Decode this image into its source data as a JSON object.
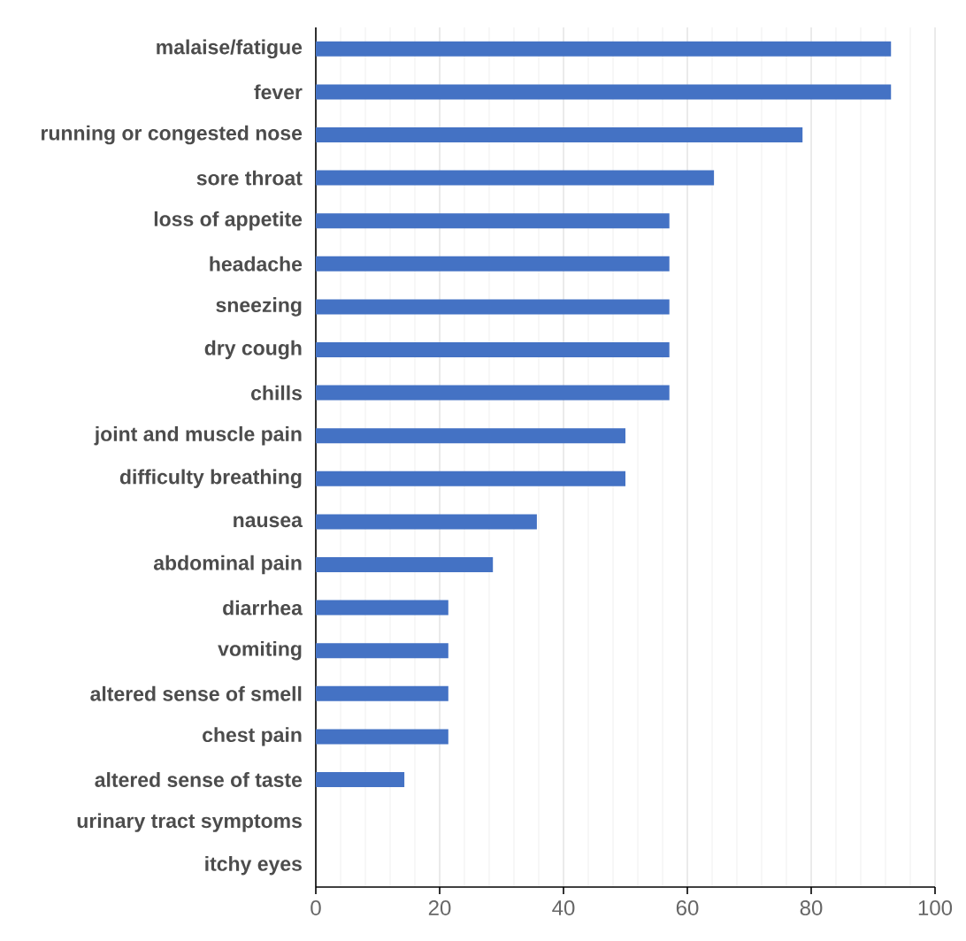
{
  "chart_data": {
    "type": "bar",
    "orientation": "horizontal",
    "categories": [
      "malaise/fatigue",
      "fever",
      "running or congested nose",
      "sore throat",
      "loss of appetite",
      "headache",
      "sneezing",
      "dry cough",
      "chills",
      "joint and muscle pain",
      "difficulty breathing",
      "nausea",
      "abdominal pain",
      "diarrhea",
      "vomiting",
      "altered sense of smell",
      "chest pain",
      "altered sense of taste",
      "urinary tract symptoms",
      "itchy eyes"
    ],
    "values": [
      92.9,
      92.9,
      78.6,
      64.3,
      57.1,
      57.1,
      57.1,
      57.1,
      57.1,
      50.0,
      50.0,
      35.7,
      28.6,
      21.4,
      21.4,
      21.4,
      21.4,
      14.3,
      0,
      0
    ],
    "color": "#4472c4",
    "xlim": [
      0,
      100
    ],
    "xticks": [
      0,
      20,
      40,
      60,
      80,
      100
    ],
    "grid": "x"
  }
}
